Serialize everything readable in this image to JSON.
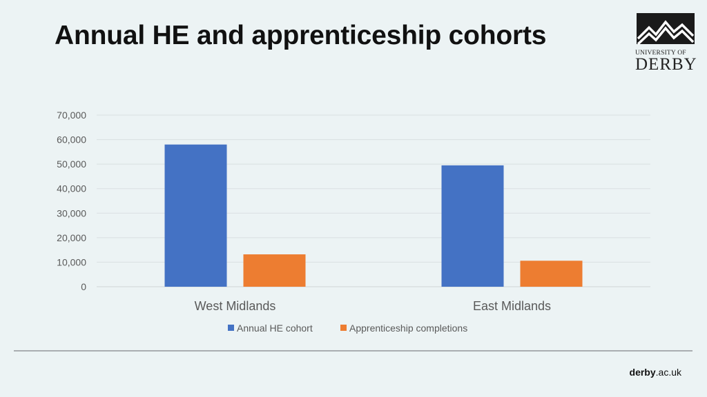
{
  "slide": {
    "title": "Annual HE and apprenticeship cohorts",
    "logo_line1": "UNIVERSITY OF",
    "logo_line2": "DERBY",
    "footer_bold": "derby",
    "footer_rest": ".ac.uk"
  },
  "chart_data": {
    "type": "bar",
    "categories": [
      "West Midlands",
      "East Midlands"
    ],
    "series": [
      {
        "name": "Annual HE cohort",
        "values": [
          58000,
          49500
        ],
        "color": "#4472c4"
      },
      {
        "name": "Apprenticeship completions",
        "values": [
          13200,
          10600
        ],
        "color": "#ed7d31"
      }
    ],
    "yticks": [
      "0",
      "10,000",
      "20,000",
      "30,000",
      "40,000",
      "50,000",
      "60,000",
      "70,000"
    ],
    "ylim": [
      0,
      70000
    ],
    "grid": true,
    "legend": "bottom"
  }
}
